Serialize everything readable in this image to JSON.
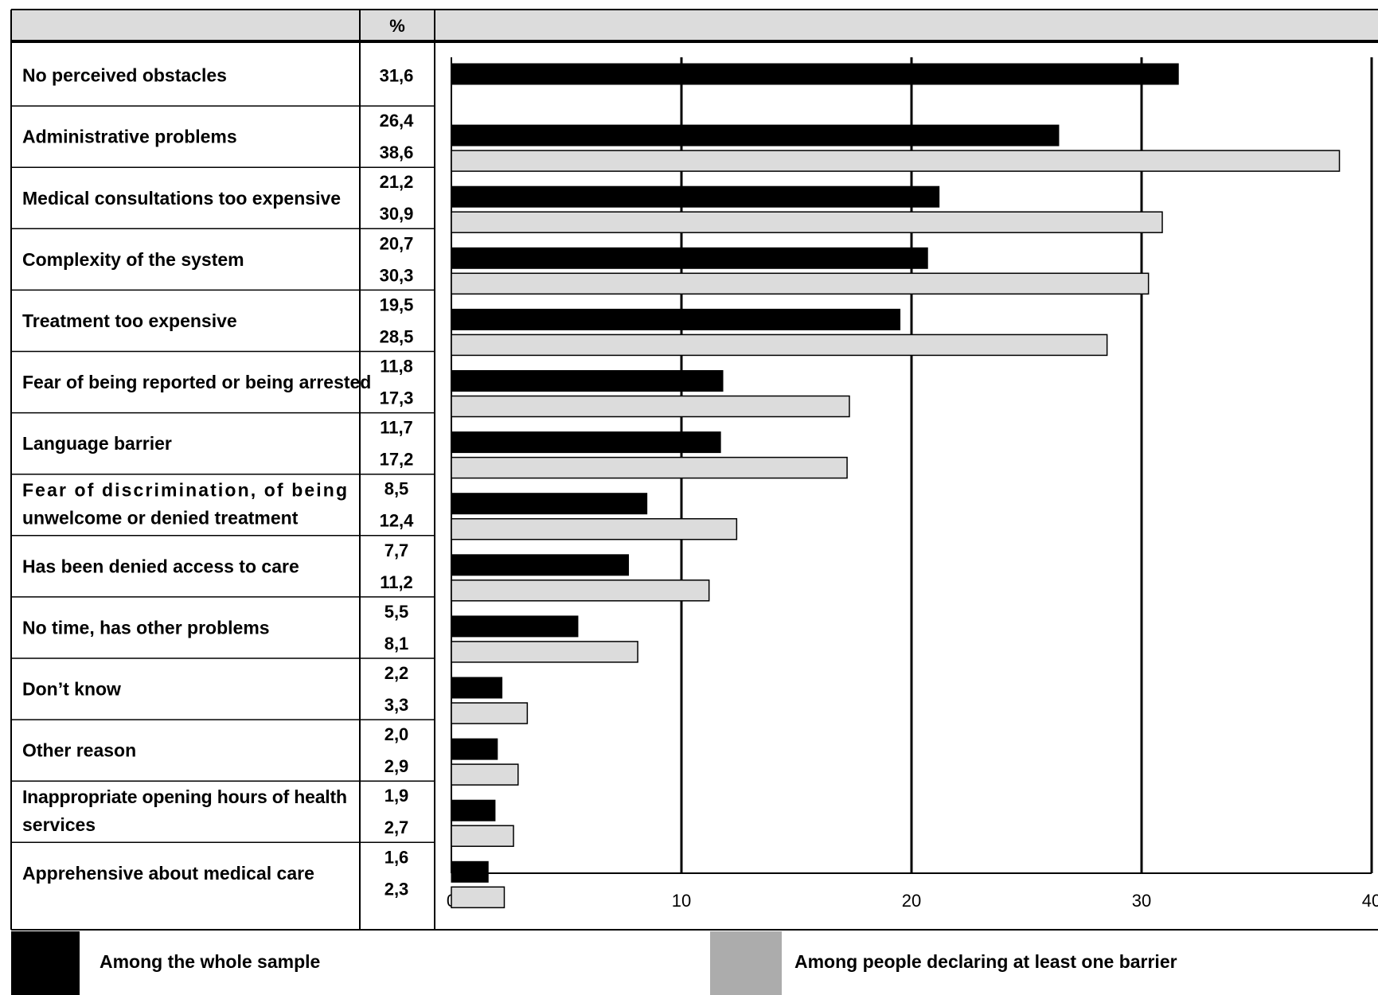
{
  "header": {
    "pct_label": "%"
  },
  "colors": {
    "whole_sample": "#000000",
    "declaring_barrier": "#dcdcdc",
    "legend_barrier": "#acacac",
    "header_bg": "#dcdcdc"
  },
  "legend": {
    "whole_sample": "Among the whole sample",
    "declaring_barrier": "Among people declaring at least one barrier"
  },
  "chart_data": {
    "type": "bar",
    "orientation": "horizontal",
    "xlim": [
      0,
      40
    ],
    "x_ticks": [
      0,
      10,
      20,
      30,
      40
    ],
    "grid": true,
    "legend_position": "bottom",
    "categories": [
      "No perceived obstacles",
      "Administrative problems",
      "Medical consultations too expensive",
      "Complexity of the system",
      "Treatment too expensive",
      "Fear of being reported or being arrested",
      "Language barrier",
      "Fear of discrimination, of being unwelcome or denied treatment",
      "Has been denied access to care",
      "No time, has other problems",
      "Don’t know",
      "Other reason",
      "Inappropriate opening hours of health services",
      "Apprehensive about medical care"
    ],
    "category_lines": [
      [
        "No perceived obstacles"
      ],
      [
        "Administrative problems"
      ],
      [
        "Medical consultations too expensive"
      ],
      [
        "Complexity of the system"
      ],
      [
        "Treatment too expensive"
      ],
      [
        "Fear of being reported or being arrested"
      ],
      [
        "Language barrier"
      ],
      [
        "Fear of discrimination, of being",
        "unwelcome or denied treatment"
      ],
      [
        "Has been denied access to care"
      ],
      [
        "No time, has other problems"
      ],
      [
        "Don’t know"
      ],
      [
        "Other reason"
      ],
      [
        "Inappropriate opening hours of health",
        "services"
      ],
      [
        "Apprehensive about medical care"
      ]
    ],
    "series": [
      {
        "name": "Among the whole sample",
        "values": [
          31.6,
          26.4,
          21.2,
          20.7,
          19.5,
          11.8,
          11.7,
          8.5,
          7.7,
          5.5,
          2.2,
          2.0,
          1.9,
          1.6
        ]
      },
      {
        "name": "Among people declaring at least one barrier",
        "values": [
          null,
          38.6,
          30.9,
          30.3,
          28.5,
          17.3,
          17.2,
          12.4,
          11.2,
          8.1,
          3.3,
          2.9,
          2.7,
          2.3
        ]
      }
    ],
    "value_labels": [
      [
        "31,6"
      ],
      [
        "26,4",
        "38,6"
      ],
      [
        "21,2",
        "30,9"
      ],
      [
        "20,7",
        "30,3"
      ],
      [
        "19,5",
        "28,5"
      ],
      [
        "11,8",
        "17,3"
      ],
      [
        "11,7",
        "17,2"
      ],
      [
        "8,5",
        "12,4"
      ],
      [
        "7,7",
        "11,2"
      ],
      [
        "5,5",
        "8,1"
      ],
      [
        "2,2",
        "3,3"
      ],
      [
        "2,0",
        "2,9"
      ],
      [
        "1,9",
        "2,7"
      ],
      [
        "1,6",
        "2,3"
      ]
    ]
  }
}
